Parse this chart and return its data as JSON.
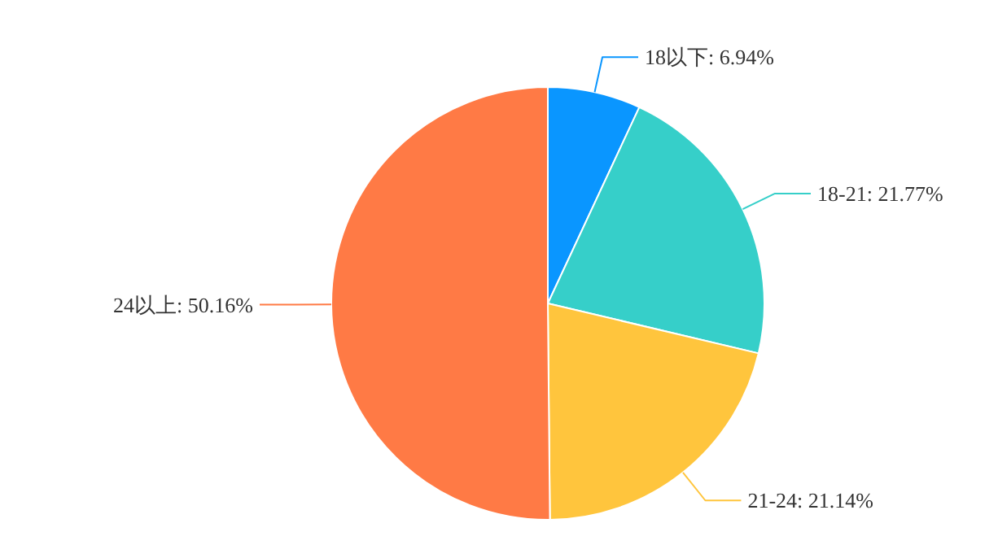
{
  "chart_data": {
    "type": "pie",
    "categories": [
      "18以下",
      "18-21",
      "21-24",
      "24以上"
    ],
    "values": [
      6.94,
      21.77,
      21.14,
      50.16
    ],
    "value_labels": [
      "6.94%",
      "21.77%",
      "21.14%",
      "50.16%"
    ],
    "colors": [
      "#0a96ff",
      "#36cfc9",
      "#ffc53d",
      "#ff7a45"
    ]
  }
}
